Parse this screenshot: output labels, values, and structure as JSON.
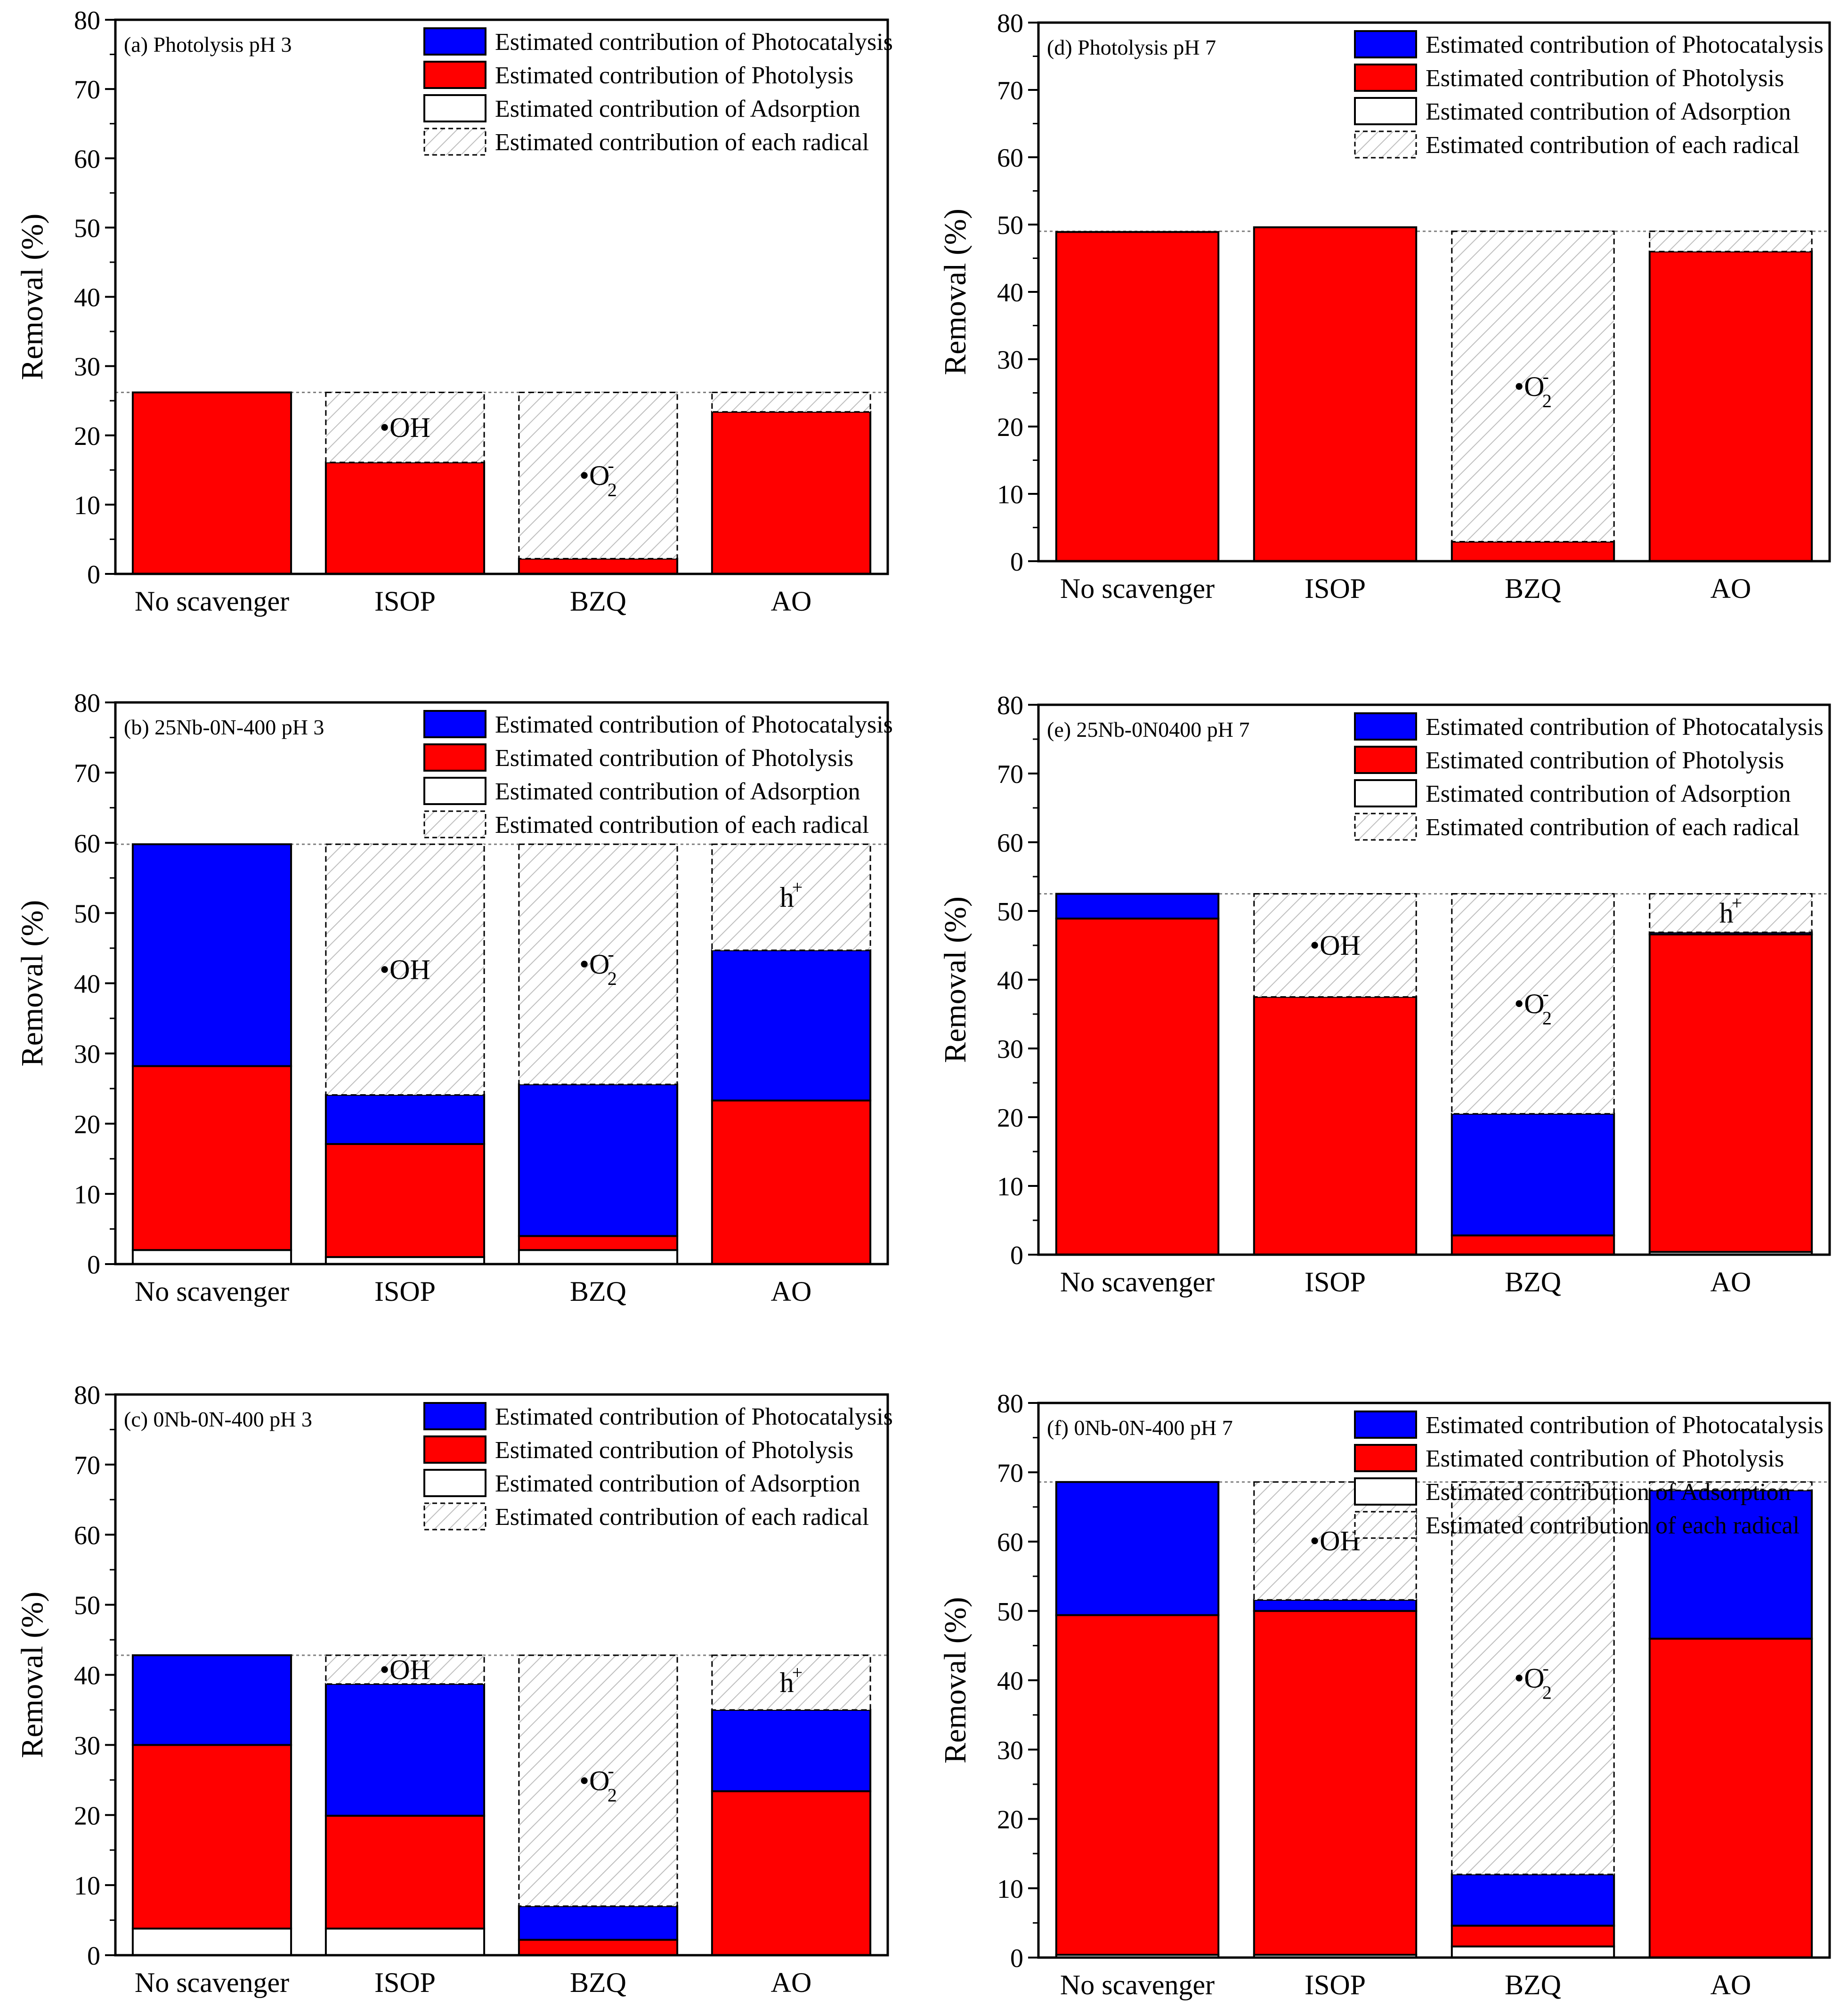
{
  "colors": {
    "photocatalysis": "#0000ff",
    "photolysis": "#ff0000",
    "adsorption": "#ffffff",
    "radical_hatch": "#bfbfbf",
    "reference_line": "#808080"
  },
  "chart_data": [
    {
      "type": "bar",
      "stacked": true,
      "title": "(a) Photolysis pH 3",
      "ylabel": "Removal (%)",
      "ylim": [
        0,
        80
      ],
      "yticks": [
        "0",
        "10",
        "20",
        "30",
        "40",
        "50",
        "60",
        "70",
        "80"
      ],
      "categories": [
        "No scavenger",
        "ISOP",
        "BZQ",
        "AO"
      ],
      "reference": 26.2,
      "series": [
        {
          "name": "Estimated contribution of Adsorption",
          "key": "adsorption",
          "values": [
            0,
            0,
            0,
            0
          ]
        },
        {
          "name": "Estimated contribution of Photolysis",
          "key": "photolysis",
          "values": [
            26.2,
            16.1,
            2.2,
            23.4
          ]
        },
        {
          "name": "Estimated contribution of Photocatalysis",
          "key": "photocatalysis",
          "values": [
            0,
            0,
            0,
            0
          ]
        }
      ],
      "radical_labels": [
        "",
        "•OH",
        "•O",
        ""
      ],
      "radical_sup": [
        "",
        "",
        "-",
        ""
      ],
      "radical_sub": [
        "",
        "",
        "2",
        ""
      ],
      "legend": [
        "Estimated contribution of Photocatalysis",
        "Estimated contribution of Photolysis",
        "Estimated contribution of Adsorption",
        "Estimated contribution of each radical"
      ]
    },
    {
      "type": "bar",
      "stacked": true,
      "title": "(b) 25Nb-0N-400 pH 3",
      "ylabel": "Removal (%)",
      "ylim": [
        0,
        80
      ],
      "yticks": [
        "0",
        "10",
        "20",
        "30",
        "40",
        "50",
        "60",
        "70",
        "80"
      ],
      "categories": [
        "No scavenger",
        "ISOP",
        "BZQ",
        "AO"
      ],
      "reference": 59.8,
      "series": [
        {
          "name": "Estimated contribution of Adsorption",
          "key": "adsorption",
          "values": [
            2.0,
            1.0,
            2.0,
            0
          ]
        },
        {
          "name": "Estimated contribution of Photolysis",
          "key": "photolysis",
          "values": [
            26.2,
            16.1,
            2.0,
            23.3
          ]
        },
        {
          "name": "Estimated contribution of Photocatalysis",
          "key": "photocatalysis",
          "values": [
            31.6,
            7.0,
            21.6,
            21.4
          ]
        }
      ],
      "radical_labels": [
        "",
        "•OH",
        "•O",
        "h"
      ],
      "radical_sup": [
        "",
        "",
        "-",
        "+"
      ],
      "radical_sub": [
        "",
        "",
        "2",
        ""
      ],
      "legend": [
        "Estimated contribution of Photocatalysis",
        "Estimated contribution of Photolysis",
        "Estimated contribution of Adsorption",
        "Estimated contribution of each radical"
      ]
    },
    {
      "type": "bar",
      "stacked": true,
      "title": "(c) 0Nb-0N-400 pH 3",
      "ylabel": "Removal (%)",
      "ylim": [
        0,
        80
      ],
      "yticks": [
        "0",
        "10",
        "20",
        "30",
        "40",
        "50",
        "60",
        "70",
        "80"
      ],
      "categories": [
        "No scavenger",
        "ISOP",
        "BZQ",
        "AO"
      ],
      "reference": 42.8,
      "series": [
        {
          "name": "Estimated contribution of Adsorption",
          "key": "adsorption",
          "values": [
            3.8,
            3.8,
            0,
            0
          ]
        },
        {
          "name": "Estimated contribution of Photolysis",
          "key": "photolysis",
          "values": [
            26.2,
            16.1,
            2.2,
            23.4
          ]
        },
        {
          "name": "Estimated contribution of Photocatalysis",
          "key": "photocatalysis",
          "values": [
            12.8,
            18.8,
            4.8,
            11.6
          ]
        }
      ],
      "radical_labels": [
        "",
        "•OH",
        "•O",
        "h"
      ],
      "radical_sup": [
        "",
        "",
        "-",
        "+"
      ],
      "radical_sub": [
        "",
        "",
        "2",
        ""
      ],
      "legend": [
        "Estimated contribution of Photocatalysis",
        "Estimated contribution of Photolysis",
        "Estimated contribution of Adsorption",
        "Estimated contribution of each radical"
      ]
    },
    {
      "type": "bar",
      "stacked": true,
      "title": "(d) Photolysis pH 7",
      "ylabel": "Removal (%)",
      "ylim": [
        0,
        80
      ],
      "yticks": [
        "0",
        "10",
        "20",
        "30",
        "40",
        "50",
        "60",
        "70",
        "80"
      ],
      "categories": [
        "No scavenger",
        "ISOP",
        "BZQ",
        "AO"
      ],
      "reference": 49.0,
      "series": [
        {
          "name": "Estimated contribution of Adsorption",
          "key": "adsorption",
          "values": [
            0,
            0,
            0,
            0
          ]
        },
        {
          "name": "Estimated contribution of Photolysis",
          "key": "photolysis",
          "values": [
            48.9,
            49.6,
            2.9,
            46.0
          ]
        },
        {
          "name": "Estimated contribution of Photocatalysis",
          "key": "photocatalysis",
          "values": [
            0,
            0,
            0,
            0
          ]
        }
      ],
      "radical_labels": [
        "",
        "",
        "•O",
        ""
      ],
      "radical_sup": [
        "",
        "",
        "-",
        ""
      ],
      "radical_sub": [
        "",
        "",
        "2",
        ""
      ],
      "legend": [
        "Estimated contribution of Photocatalysis",
        "Estimated contribution of Photolysis",
        "Estimated contribution of Adsorption",
        "Estimated contribution of each radical"
      ]
    },
    {
      "type": "bar",
      "stacked": true,
      "title": "(e) 25Nb-0N0400 pH 7",
      "ylabel": "Removal (%)",
      "ylim": [
        0,
        80
      ],
      "yticks": [
        "0",
        "10",
        "20",
        "30",
        "40",
        "50",
        "60",
        "70",
        "80"
      ],
      "categories": [
        "No scavenger",
        "ISOP",
        "BZQ",
        "AO"
      ],
      "reference": 52.5,
      "series": [
        {
          "name": "Estimated contribution of Adsorption",
          "key": "adsorption",
          "values": [
            0,
            0,
            0,
            0.4
          ]
        },
        {
          "name": "Estimated contribution of Photolysis",
          "key": "photolysis",
          "values": [
            48.9,
            37.5,
            2.8,
            46.2
          ]
        },
        {
          "name": "Estimated contribution of Photocatalysis",
          "key": "photocatalysis",
          "values": [
            3.6,
            0,
            17.7,
            0.3
          ]
        }
      ],
      "radical_labels": [
        "",
        "•OH",
        "•O",
        "h"
      ],
      "radical_sup": [
        "",
        "",
        "-",
        "+"
      ],
      "radical_sub": [
        "",
        "",
        "2",
        ""
      ],
      "legend": [
        "Estimated contribution of Photocatalysis",
        "Estimated contribution of Photolysis",
        "Estimated contribution of Adsorption",
        "Estimated contribution of each radical"
      ]
    },
    {
      "type": "bar",
      "stacked": true,
      "title": "(f) 0Nb-0N-400 pH 7",
      "ylabel": "Removal (%)",
      "ylim": [
        0,
        80
      ],
      "yticks": [
        "0",
        "10",
        "20",
        "30",
        "40",
        "50",
        "60",
        "70",
        "80"
      ],
      "categories": [
        "No scavenger",
        "ISOP",
        "BZQ",
        "AO"
      ],
      "reference": 68.6,
      "series": [
        {
          "name": "Estimated contribution of Adsorption",
          "key": "adsorption",
          "values": [
            0.4,
            0.4,
            1.6,
            0
          ]
        },
        {
          "name": "Estimated contribution of Photolysis",
          "key": "photolysis",
          "values": [
            49.0,
            49.6,
            3.0,
            46.0
          ]
        },
        {
          "name": "Estimated contribution of Photocatalysis",
          "key": "photocatalysis",
          "values": [
            19.2,
            1.6,
            7.4,
            21.4
          ]
        }
      ],
      "radical_labels": [
        "",
        "•OH",
        "•O",
        ""
      ],
      "radical_sup": [
        "",
        "",
        "-",
        ""
      ],
      "radical_sub": [
        "",
        "",
        "2",
        ""
      ],
      "legend": [
        "Estimated contribution of Photocatalysis",
        "Estimated contribution of Photolysis",
        "Estimated contribution of Adsorption",
        "Estimated contribution of each radical"
      ]
    }
  ]
}
